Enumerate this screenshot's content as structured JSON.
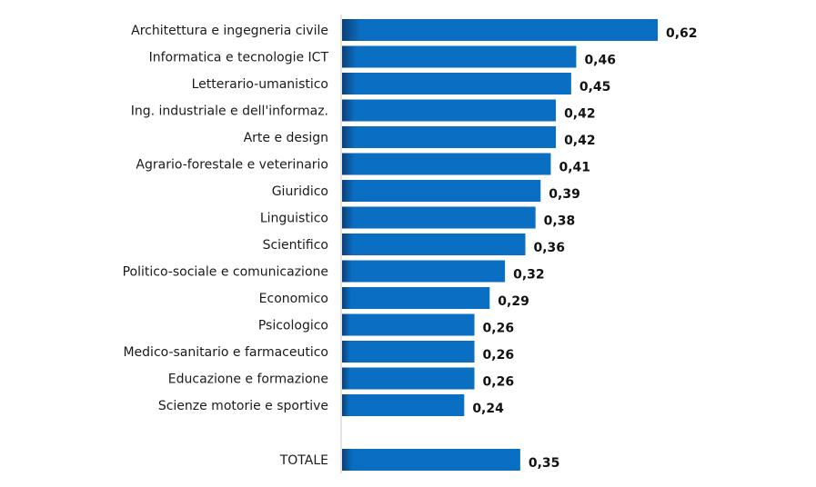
{
  "chart_data": {
    "type": "bar",
    "orientation": "horizontal",
    "categories": [
      "Architettura e ingegneria civile",
      "Informatica e tecnologie ICT",
      "Letterario-umanistico",
      "Ing. industriale e dell'informaz.",
      "Arte e design",
      "Agrario-forestale e veterinario",
      "Giuridico",
      "Linguistico",
      "Scientifico",
      "Politico-sociale e comunicazione",
      "Economico",
      "Psicologico",
      "Medico-sanitario e farmaceutico",
      "Educazione e formazione",
      "Scienze motorie e sportive",
      "TOTALE"
    ],
    "values": [
      0.62,
      0.46,
      0.45,
      0.42,
      0.42,
      0.41,
      0.39,
      0.38,
      0.36,
      0.32,
      0.29,
      0.26,
      0.26,
      0.26,
      0.24,
      0.35
    ],
    "value_labels": [
      "0,62",
      "0,46",
      "0,45",
      "0,42",
      "0,42",
      "0,41",
      "0,39",
      "0,38",
      "0,36",
      "0,32",
      "0,29",
      "0,26",
      "0,26",
      "0,26",
      "0,24",
      "0,35"
    ],
    "title": "",
    "xlabel": "",
    "ylabel": "",
    "xlim": [
      0,
      0.62
    ],
    "grid": false,
    "legend": "none",
    "bar_color": "#0a6fc2",
    "bar_shade_color": "#0d3f78",
    "axis_color": "#c8c8c8"
  }
}
